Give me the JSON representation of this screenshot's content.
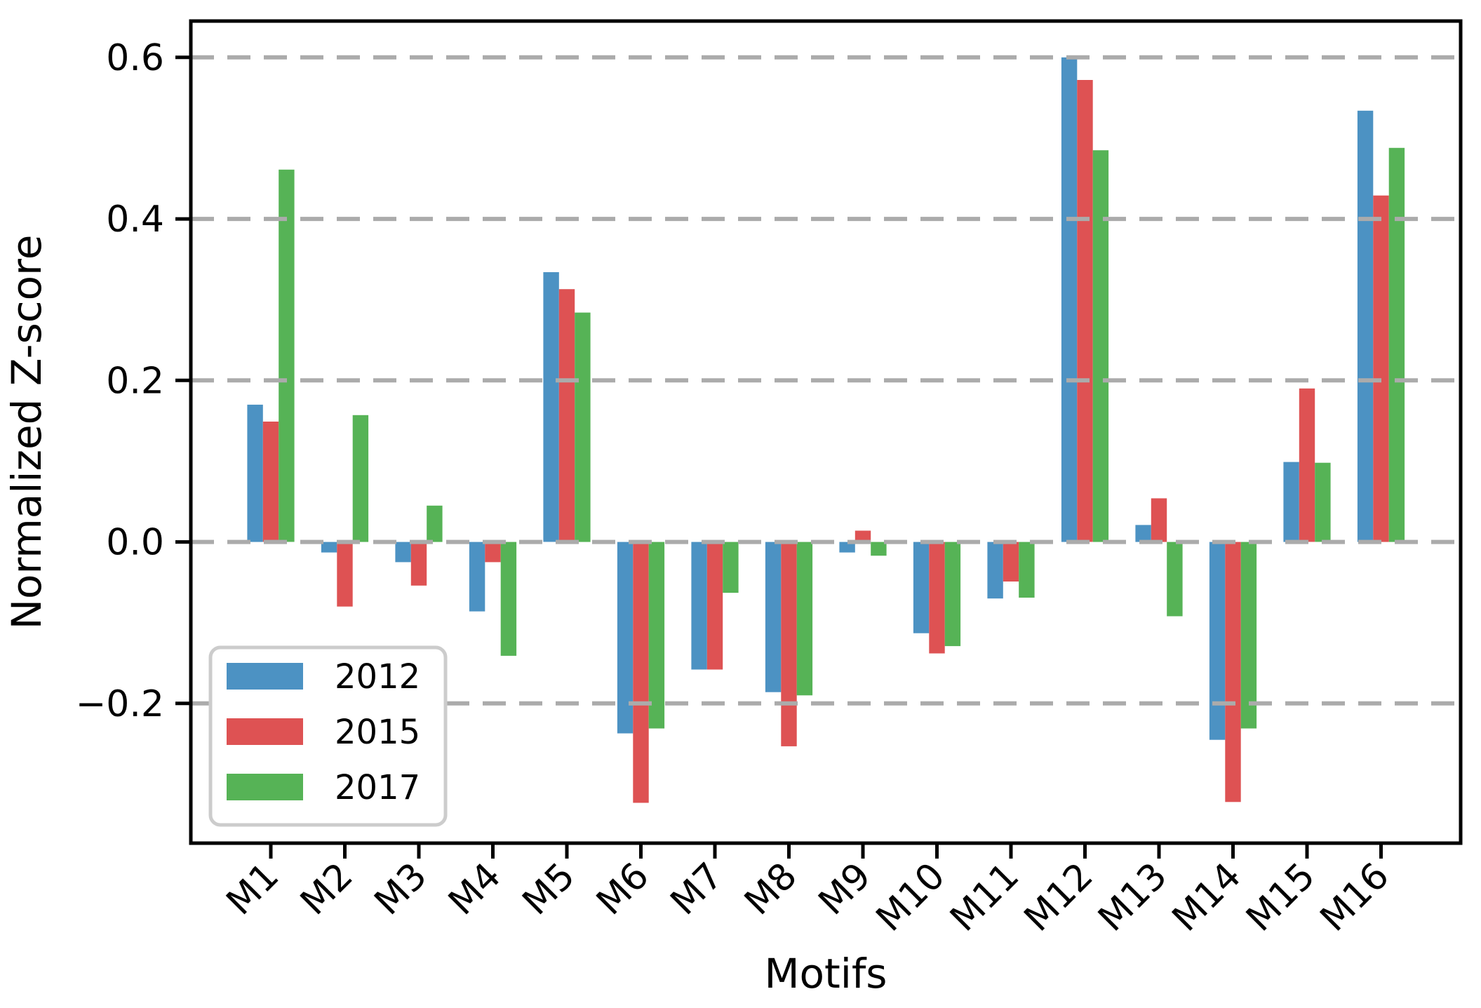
{
  "chart_data": {
    "type": "bar",
    "title": "",
    "xlabel": "Motifs",
    "ylabel": "Normalized Z-score",
    "categories": [
      "M1",
      "M2",
      "M3",
      "M4",
      "M5",
      "M6",
      "M7",
      "M8",
      "M9",
      "M10",
      "M11",
      "M12",
      "M13",
      "M14",
      "M15",
      "M16"
    ],
    "series": [
      {
        "name": "2012",
        "color": "#4C92C3",
        "values": [
          0.17,
          -0.013,
          -0.025,
          -0.086,
          0.334,
          -0.237,
          -0.158,
          -0.186,
          -0.013,
          -0.113,
          -0.07,
          0.6,
          0.021,
          -0.245,
          0.099,
          0.534
        ]
      },
      {
        "name": "2015",
        "color": "#DE5253",
        "values": [
          0.149,
          -0.08,
          -0.054,
          -0.025,
          0.313,
          -0.323,
          -0.158,
          -0.253,
          0.014,
          -0.138,
          -0.049,
          0.572,
          0.054,
          -0.322,
          0.19,
          0.429
        ]
      },
      {
        "name": "2017",
        "color": "#56B356",
        "values": [
          0.461,
          0.157,
          0.045,
          -0.141,
          0.284,
          -0.231,
          -0.063,
          -0.19,
          -0.017,
          -0.129,
          -0.069,
          0.485,
          -0.092,
          -0.231,
          0.098,
          0.488
        ]
      }
    ],
    "yticks": [
      0.6,
      0.4,
      0.2,
      0.0,
      -0.2
    ],
    "ytick_labels": [
      "0.6",
      "0.4",
      "0.2",
      "0.0",
      "−0.2"
    ],
    "ylim": [
      -0.373,
      0.645
    ],
    "grid": {
      "axis": "y",
      "style": "dashed",
      "color": "#ABABAB",
      "on_top": true
    },
    "legend": {
      "position": "lower-left",
      "entries": [
        "2012",
        "2015",
        "2017"
      ]
    },
    "frame_color": "#000000",
    "background": "#ffffff"
  }
}
